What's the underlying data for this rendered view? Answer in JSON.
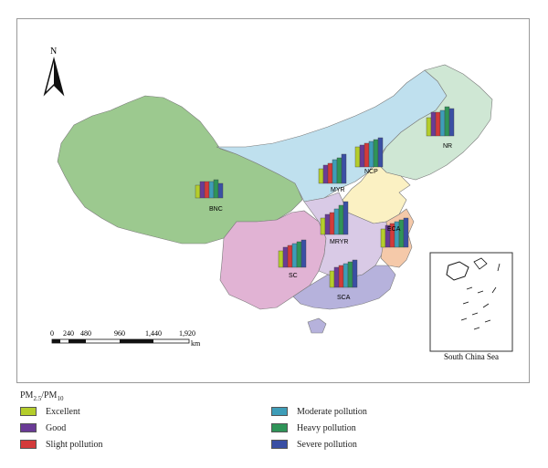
{
  "north_label": "N",
  "scale_bar": {
    "ticks": [
      "0",
      "240",
      "480",
      "960",
      "1,440",
      "1,920"
    ],
    "unit": "km"
  },
  "inset_label": "South China Sea",
  "regions": [
    {
      "id": "BNC",
      "label": "BNC",
      "color": "#9cc98f"
    },
    {
      "id": "NR",
      "label": "NR",
      "color": "#cfe7d4"
    },
    {
      "id": "MYR",
      "label": "MYR",
      "color": "#bfe0ee"
    },
    {
      "id": "NCP",
      "label": "NCP",
      "color": "#fbf1c3"
    },
    {
      "id": "MRYR",
      "label": "MRYR",
      "color": "#d9cae6"
    },
    {
      "id": "SC",
      "label": "SC",
      "color": "#e1b3d4"
    },
    {
      "id": "ECA",
      "label": "ECA",
      "color": "#f5c9a9"
    },
    {
      "id": "SCA",
      "label": "SCA",
      "color": "#b6b2dc"
    }
  ],
  "bar_series": [
    "Excellent",
    "Good",
    "Slight pollution",
    "Moderate pollution",
    "Heavy pollution",
    "Severe pollution"
  ],
  "bar_colors": [
    "#b4cd2b",
    "#6a3b96",
    "#d33a3a",
    "#3e9db8",
    "#2f9458",
    "#3a4fa4"
  ],
  "legend": {
    "title_main": "PM",
    "title_sub1": "2.5",
    "title_mid": "/PM",
    "title_sub2": "10",
    "items": [
      {
        "label": "Excellent",
        "color": "#b4cd2b"
      },
      {
        "label": "Good",
        "color": "#6a3b96"
      },
      {
        "label": "Slight pollution",
        "color": "#d33a3a"
      },
      {
        "label": "Moderate pollution",
        "color": "#3e9db8"
      },
      {
        "label": "Heavy pollution",
        "color": "#2f9458"
      },
      {
        "label": "Severe pollution",
        "color": "#3a4fa4"
      }
    ]
  }
}
